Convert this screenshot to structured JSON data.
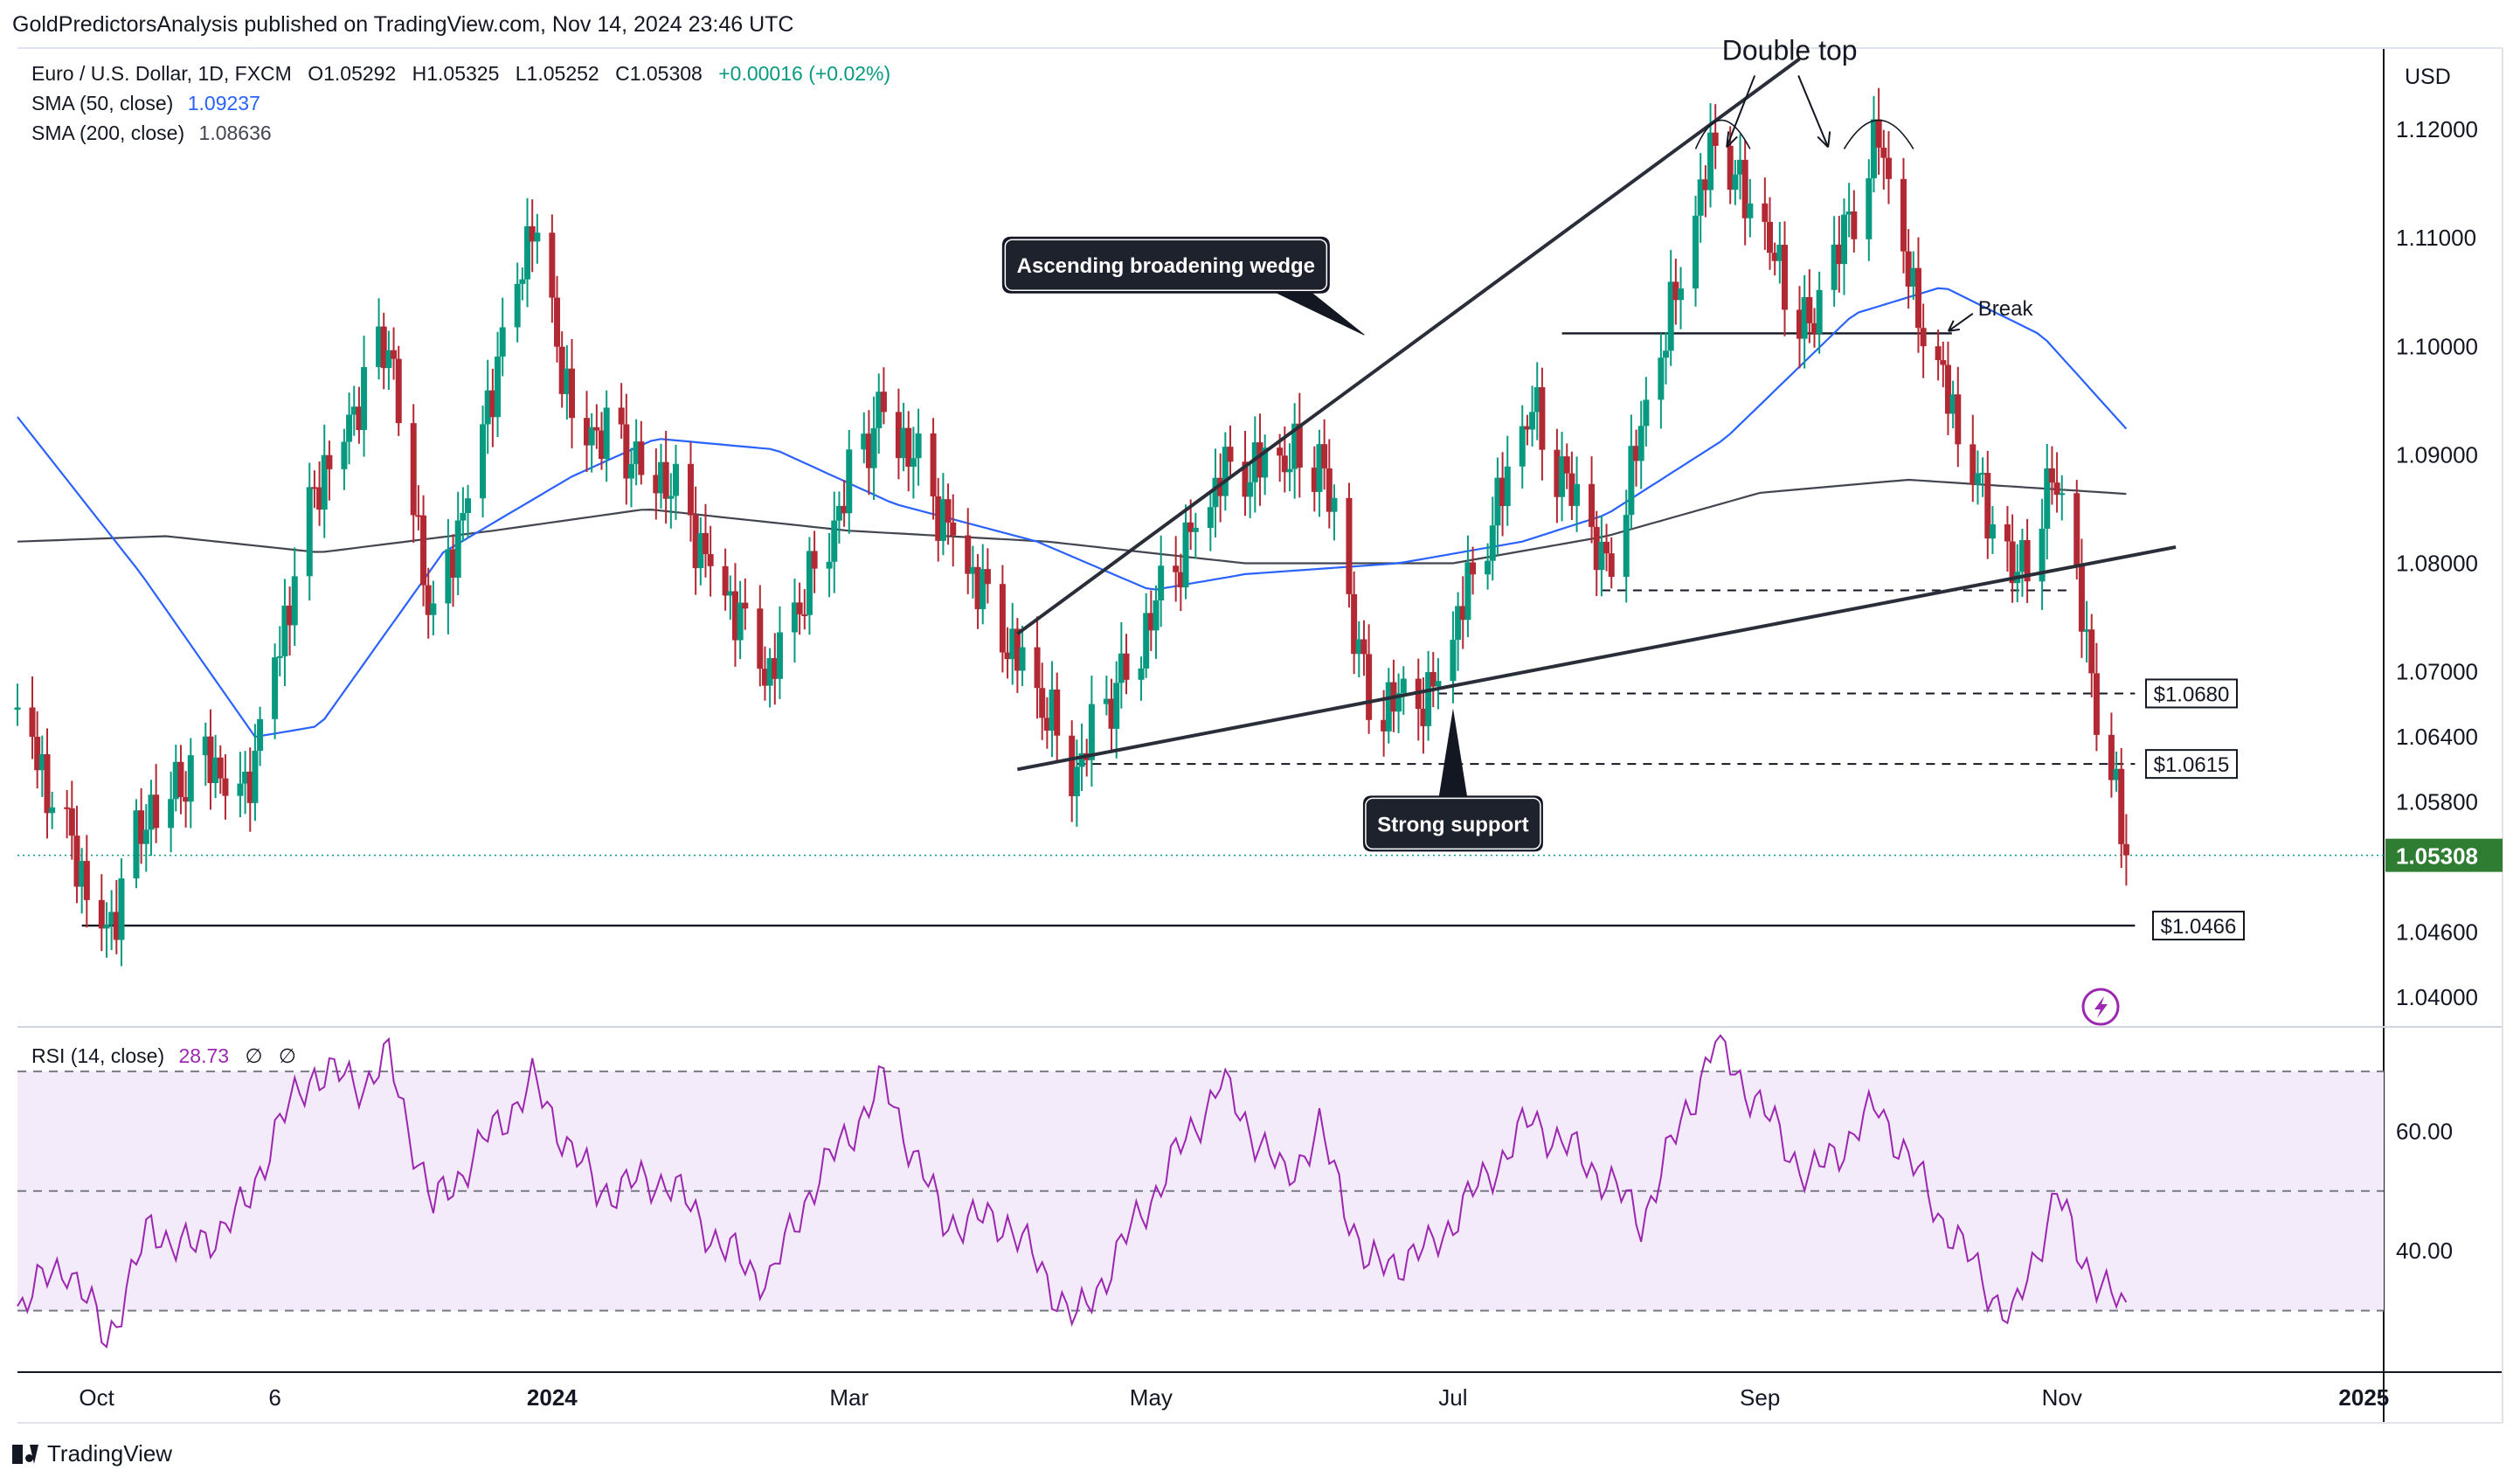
{
  "header": {
    "publisher_line": "GoldPredictorsAnalysis published on TradingView.com, Nov 14, 2024 23:46 UTC"
  },
  "footer": {
    "brand": "TradingView"
  },
  "colors": {
    "up": "#089981",
    "down": "#b22833",
    "sma50": "#2962ff",
    "sma200": "#434651",
    "rsi": "#9c27b0",
    "rsi_band": "#f3eafa",
    "price_tag": "#2e7d32",
    "text": "#131722"
  },
  "chart_data": {
    "type": "candlestick",
    "legend": {
      "symbol": "Euro / U.S. Dollar, 1D, FXCM",
      "open": "O1.05292",
      "high": "H1.05325",
      "low": "L1.05252",
      "close": "C1.05308",
      "change": "+0.00016 (+0.02%)",
      "sma50_label": "SMA (50, close)",
      "sma50_value": "1.09237",
      "sma200_label": "SMA (200, close)",
      "sma200_value": "1.08636"
    },
    "currency": "USD",
    "x_start": "2023-09-15",
    "x_end": "2025-01-05",
    "x_ticks": [
      {
        "date": "2023-10-01",
        "label": "Oct",
        "bold": false
      },
      {
        "date": "2023-11-06",
        "label": "6",
        "bold": false
      },
      {
        "date": "2024-01-01",
        "label": "2024",
        "bold": true
      },
      {
        "date": "2024-03-01",
        "label": "Mar",
        "bold": false
      },
      {
        "date": "2024-05-01",
        "label": "May",
        "bold": false
      },
      {
        "date": "2024-07-01",
        "label": "Jul",
        "bold": false
      },
      {
        "date": "2024-09-01",
        "label": "Sep",
        "bold": false
      },
      {
        "date": "2024-11-01",
        "label": "Nov",
        "bold": false
      },
      {
        "date": "2025-01-01",
        "label": "2025",
        "bold": true
      }
    ],
    "y_range": [
      1.0375,
      1.1275
    ],
    "y_ticks": [
      "1.12000",
      "1.11000",
      "1.10000",
      "1.09000",
      "1.08000",
      "1.07000",
      "1.06400",
      "1.05800",
      "1.04600",
      "1.04000"
    ],
    "last_price": "1.05308",
    "anchors": [
      {
        "date": "2023-09-15",
        "price": 1.0665
      },
      {
        "date": "2023-10-03",
        "price": 1.046
      },
      {
        "date": "2023-10-12",
        "price": 1.058
      },
      {
        "date": "2023-10-24",
        "price": 1.062
      },
      {
        "date": "2023-10-31",
        "price": 1.059
      },
      {
        "date": "2023-11-14",
        "price": 1.087
      },
      {
        "date": "2023-11-29",
        "price": 1.101
      },
      {
        "date": "2023-12-08",
        "price": 1.074
      },
      {
        "date": "2023-12-28",
        "price": 1.112
      },
      {
        "date": "2024-01-05",
        "price": 1.094
      },
      {
        "date": "2024-01-24",
        "price": 1.088
      },
      {
        "date": "2024-02-14",
        "price": 1.07
      },
      {
        "date": "2024-03-08",
        "price": 1.095
      },
      {
        "date": "2024-04-02",
        "price": 1.073
      },
      {
        "date": "2024-04-16",
        "price": 1.061
      },
      {
        "date": "2024-05-15",
        "price": 1.088
      },
      {
        "date": "2024-06-04",
        "price": 1.09
      },
      {
        "date": "2024-06-14",
        "price": 1.067
      },
      {
        "date": "2024-06-26",
        "price": 1.067
      },
      {
        "date": "2024-07-17",
        "price": 1.094
      },
      {
        "date": "2024-08-01",
        "price": 1.079
      },
      {
        "date": "2024-08-23",
        "price": 1.119
      },
      {
        "date": "2024-09-11",
        "price": 1.101
      },
      {
        "date": "2024-09-25",
        "price": 1.119
      },
      {
        "date": "2024-10-02",
        "price": 1.104
      },
      {
        "date": "2024-10-22",
        "price": 1.078
      },
      {
        "date": "2024-10-31",
        "price": 1.088
      },
      {
        "date": "2024-11-06",
        "price": 1.072
      },
      {
        "date": "2024-11-14",
        "price": 1.053
      }
    ],
    "sma50": [
      {
        "date": "2023-09-15",
        "price": 1.0935
      },
      {
        "date": "2023-10-10",
        "price": 1.079
      },
      {
        "date": "2023-11-02",
        "price": 1.064
      },
      {
        "date": "2023-11-15",
        "price": 1.065
      },
      {
        "date": "2023-12-10",
        "price": 1.081
      },
      {
        "date": "2024-01-05",
        "price": 1.088
      },
      {
        "date": "2024-01-22",
        "price": 1.0915
      },
      {
        "date": "2024-02-15",
        "price": 1.0905
      },
      {
        "date": "2024-03-10",
        "price": 1.0855
      },
      {
        "date": "2024-04-08",
        "price": 1.082
      },
      {
        "date": "2024-05-01",
        "price": 1.0775
      },
      {
        "date": "2024-05-20",
        "price": 1.079
      },
      {
        "date": "2024-06-20",
        "price": 1.08
      },
      {
        "date": "2024-07-15",
        "price": 1.082
      },
      {
        "date": "2024-08-01",
        "price": 1.0845
      },
      {
        "date": "2024-08-25",
        "price": 1.0915
      },
      {
        "date": "2024-09-20",
        "price": 1.103
      },
      {
        "date": "2024-10-08",
        "price": 1.1055
      },
      {
        "date": "2024-10-28",
        "price": 1.101
      },
      {
        "date": "2024-11-14",
        "price": 1.0924
      }
    ],
    "sma200": [
      {
        "date": "2023-09-15",
        "price": 1.082
      },
      {
        "date": "2023-10-15",
        "price": 1.0825
      },
      {
        "date": "2023-11-15",
        "price": 1.081
      },
      {
        "date": "2023-12-20",
        "price": 1.083
      },
      {
        "date": "2024-01-20",
        "price": 1.085
      },
      {
        "date": "2024-03-01",
        "price": 1.083
      },
      {
        "date": "2024-04-10",
        "price": 1.082
      },
      {
        "date": "2024-05-20",
        "price": 1.08
      },
      {
        "date": "2024-07-01",
        "price": 1.08
      },
      {
        "date": "2024-08-01",
        "price": 1.0825
      },
      {
        "date": "2024-09-01",
        "price": 1.0865
      },
      {
        "date": "2024-10-01",
        "price": 1.0877
      },
      {
        "date": "2024-11-14",
        "price": 1.0864
      }
    ],
    "levels": [
      {
        "label": "$1.0680",
        "price": 1.068,
        "from": "2024-06-28",
        "to": "2024-11-14",
        "style": "dashed",
        "tag": true
      },
      {
        "label": "$1.0615",
        "price": 1.0615,
        "from": "2024-04-16",
        "to": "2024-11-14",
        "style": "dashed",
        "tag": true
      },
      {
        "label": "$1.0466",
        "price": 1.0466,
        "from": "2023-09-28",
        "to": "2024-11-14",
        "style": "solid",
        "tag": true
      },
      {
        "label": "",
        "price": 1.0775,
        "from": "2024-07-31",
        "to": "2024-11-01",
        "style": "dashed",
        "tag": false
      },
      {
        "label": "",
        "price": 1.1012,
        "from": "2024-07-23",
        "to": "2024-10-08",
        "style": "solid",
        "tag": false
      }
    ],
    "trendlines": [
      {
        "from": {
          "date": "2024-04-04",
          "price": 1.0735
        },
        "to": {
          "date": "2024-09-09",
          "price": 1.1265
        }
      },
      {
        "from": {
          "date": "2024-04-04",
          "price": 1.061
        },
        "to": {
          "date": "2024-11-24",
          "price": 1.0815
        }
      }
    ],
    "annotations": [
      {
        "text": "Double top",
        "date": "2024-09-07",
        "price": 1.124,
        "kind": "text"
      },
      {
        "text": "Break",
        "date": "2024-10-08",
        "price": 1.1035,
        "kind": "text-small"
      },
      {
        "text": "Ascending broadening wedge",
        "date": "2024-05-04",
        "price": 1.1075,
        "kind": "callout-down"
      },
      {
        "text": "Strong support",
        "date": "2024-07-01",
        "price": 1.056,
        "kind": "callout-up"
      }
    ],
    "rsi": {
      "label": "RSI (14, close)",
      "value": "28.73",
      "extra": [
        "∅",
        "∅"
      ],
      "y_range": [
        20,
        77
      ],
      "levels": [
        70,
        50,
        30
      ],
      "y_ticks": [
        "60.00",
        "40.00"
      ],
      "series": [
        {
          "date": "2023-09-15",
          "value": 31
        },
        {
          "date": "2023-09-25",
          "value": 38
        },
        {
          "date": "2023-10-03",
          "value": 25
        },
        {
          "date": "2023-10-12",
          "value": 44
        },
        {
          "date": "2023-10-20",
          "value": 40
        },
        {
          "date": "2023-10-31",
          "value": 47
        },
        {
          "date": "2023-11-06",
          "value": 60
        },
        {
          "date": "2023-11-14",
          "value": 70
        },
        {
          "date": "2023-11-24",
          "value": 68
        },
        {
          "date": "2023-11-29",
          "value": 72
        },
        {
          "date": "2023-12-08",
          "value": 47
        },
        {
          "date": "2023-12-20",
          "value": 60
        },
        {
          "date": "2023-12-28",
          "value": 68
        },
        {
          "date": "2024-01-10",
          "value": 50
        },
        {
          "date": "2024-01-24",
          "value": 52
        },
        {
          "date": "2024-02-05",
          "value": 40
        },
        {
          "date": "2024-02-14",
          "value": 35
        },
        {
          "date": "2024-02-22",
          "value": 50
        },
        {
          "date": "2024-03-08",
          "value": 68
        },
        {
          "date": "2024-03-20",
          "value": 45
        },
        {
          "date": "2024-04-02",
          "value": 45
        },
        {
          "date": "2024-04-16",
          "value": 28
        },
        {
          "date": "2024-04-26",
          "value": 42
        },
        {
          "date": "2024-05-15",
          "value": 68
        },
        {
          "date": "2024-05-28",
          "value": 52
        },
        {
          "date": "2024-06-04",
          "value": 60
        },
        {
          "date": "2024-06-14",
          "value": 37
        },
        {
          "date": "2024-06-26",
          "value": 40
        },
        {
          "date": "2024-07-17",
          "value": 62
        },
        {
          "date": "2024-08-01",
          "value": 52
        },
        {
          "date": "2024-08-08",
          "value": 45
        },
        {
          "date": "2024-08-23",
          "value": 75
        },
        {
          "date": "2024-09-11",
          "value": 52
        },
        {
          "date": "2024-09-25",
          "value": 64
        },
        {
          "date": "2024-10-08",
          "value": 45
        },
        {
          "date": "2024-10-22",
          "value": 28
        },
        {
          "date": "2024-10-31",
          "value": 50
        },
        {
          "date": "2024-11-04",
          "value": 40
        },
        {
          "date": "2024-11-14",
          "value": 29
        }
      ]
    }
  }
}
